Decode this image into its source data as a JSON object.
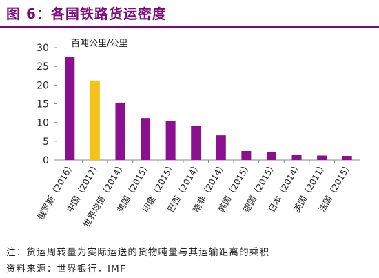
{
  "header": {
    "title": "图 6：各国铁路货运密度"
  },
  "chart_data": {
    "type": "bar",
    "title": "图 6：各国铁路货运密度",
    "ylabel": "百吨公里/公里",
    "xlabel": "",
    "ylim": [
      0,
      30
    ],
    "yticks": [
      0,
      5,
      10,
      15,
      20,
      25,
      30
    ],
    "grid": false,
    "categories": [
      "俄罗斯（2016）",
      "中国（2017）",
      "世界均值（2014）",
      "美国（2015）",
      "印度（2015）",
      "巴西（2014）",
      "南非（2014）",
      "韩国（2015）",
      "德国（2015）",
      "日本（2014）",
      "英国（2011）",
      "法国（2015）"
    ],
    "values": [
      27.6,
      21.2,
      15.3,
      11.2,
      10.4,
      9.1,
      6.6,
      2.4,
      2.2,
      1.3,
      1.2,
      1.1
    ],
    "colors": {
      "default": "#8b0f8f",
      "highlight": "#f5c218",
      "highlight_category": "中国（2017）"
    }
  },
  "footer": {
    "note": "注：货运周转量为实际运送的货物吨量与其运输距离的乘积",
    "source": "资料来源：世界银行，IMF"
  }
}
